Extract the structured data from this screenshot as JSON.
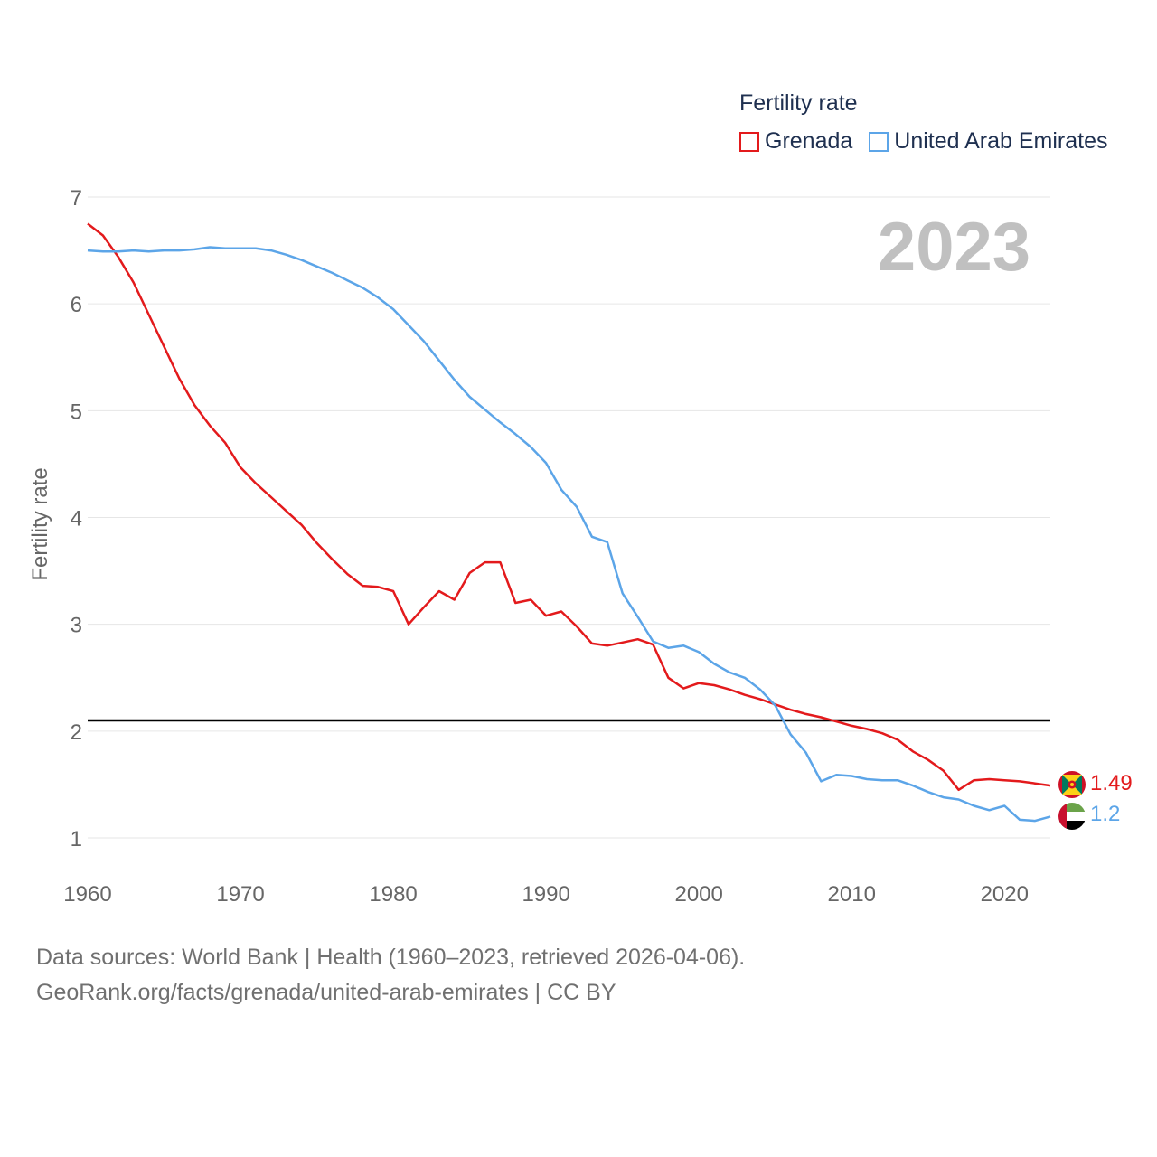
{
  "legend": {
    "title": "Fertility rate",
    "items": [
      {
        "label": "Grenada",
        "color": "#e31a1c"
      },
      {
        "label": "United Arab Emirates",
        "color": "#5ca5e8"
      }
    ]
  },
  "watermark_year": "2023",
  "end_labels": {
    "grenada": "1.49",
    "uae": "1.2"
  },
  "source": {
    "line1": "Data sources: World Bank | Health (1960–2023, retrieved 2026-04-06).",
    "line2": "GeoRank.org/facts/grenada/united-arab-emirates | CC BY"
  },
  "chart_data": {
    "type": "line",
    "title": "",
    "xlabel": "",
    "ylabel": "Fertility rate",
    "xlim": [
      1960,
      2023
    ],
    "ylim": [
      0.75,
      7
    ],
    "x_ticks": [
      "1960",
      "1970",
      "1980",
      "1990",
      "2000",
      "2010",
      "2020"
    ],
    "y_ticks": [
      "1",
      "2",
      "3",
      "4",
      "5",
      "6",
      "7"
    ],
    "reference_line": 2.1,
    "x": [
      1960,
      1961,
      1962,
      1963,
      1964,
      1965,
      1966,
      1967,
      1968,
      1969,
      1970,
      1971,
      1972,
      1973,
      1974,
      1975,
      1976,
      1977,
      1978,
      1979,
      1980,
      1981,
      1982,
      1983,
      1984,
      1985,
      1986,
      1987,
      1988,
      1989,
      1990,
      1991,
      1992,
      1993,
      1994,
      1995,
      1996,
      1997,
      1998,
      1999,
      2000,
      2001,
      2002,
      2003,
      2004,
      2005,
      2006,
      2007,
      2008,
      2009,
      2010,
      2011,
      2012,
      2013,
      2014,
      2015,
      2016,
      2017,
      2018,
      2019,
      2020,
      2021,
      2022,
      2023
    ],
    "series": [
      {
        "name": "Grenada",
        "color": "#e31a1c",
        "values": [
          6.75,
          6.64,
          6.44,
          6.2,
          5.9,
          5.6,
          5.3,
          5.05,
          4.86,
          4.7,
          4.47,
          4.32,
          4.19,
          4.06,
          3.93,
          3.76,
          3.61,
          3.47,
          3.36,
          3.35,
          3.31,
          3.0,
          3.16,
          3.31,
          3.23,
          3.48,
          3.58,
          3.58,
          3.2,
          3.23,
          3.08,
          3.12,
          2.98,
          2.82,
          2.8,
          2.83,
          2.86,
          2.81,
          2.5,
          2.4,
          2.45,
          2.43,
          2.39,
          2.34,
          2.3,
          2.25,
          2.2,
          2.16,
          2.13,
          2.09,
          2.05,
          2.02,
          1.98,
          1.92,
          1.81,
          1.73,
          1.63,
          1.45,
          1.54,
          1.55,
          1.54,
          1.53,
          1.51,
          1.49
        ]
      },
      {
        "name": "United Arab Emirates",
        "color": "#5ca5e8",
        "values": [
          6.5,
          6.49,
          6.49,
          6.5,
          6.49,
          6.5,
          6.5,
          6.51,
          6.53,
          6.52,
          6.52,
          6.52,
          6.5,
          6.46,
          6.41,
          6.35,
          6.29,
          6.22,
          6.15,
          6.06,
          5.95,
          5.8,
          5.65,
          5.47,
          5.29,
          5.13,
          5.01,
          4.89,
          4.78,
          4.66,
          4.51,
          4.26,
          4.1,
          3.82,
          3.77,
          3.29,
          3.07,
          2.84,
          2.78,
          2.8,
          2.74,
          2.63,
          2.55,
          2.5,
          2.39,
          2.24,
          1.97,
          1.8,
          1.53,
          1.59,
          1.58,
          1.55,
          1.54,
          1.54,
          1.49,
          1.43,
          1.38,
          1.36,
          1.3,
          1.26,
          1.3,
          1.17,
          1.16,
          1.2
        ]
      }
    ]
  }
}
